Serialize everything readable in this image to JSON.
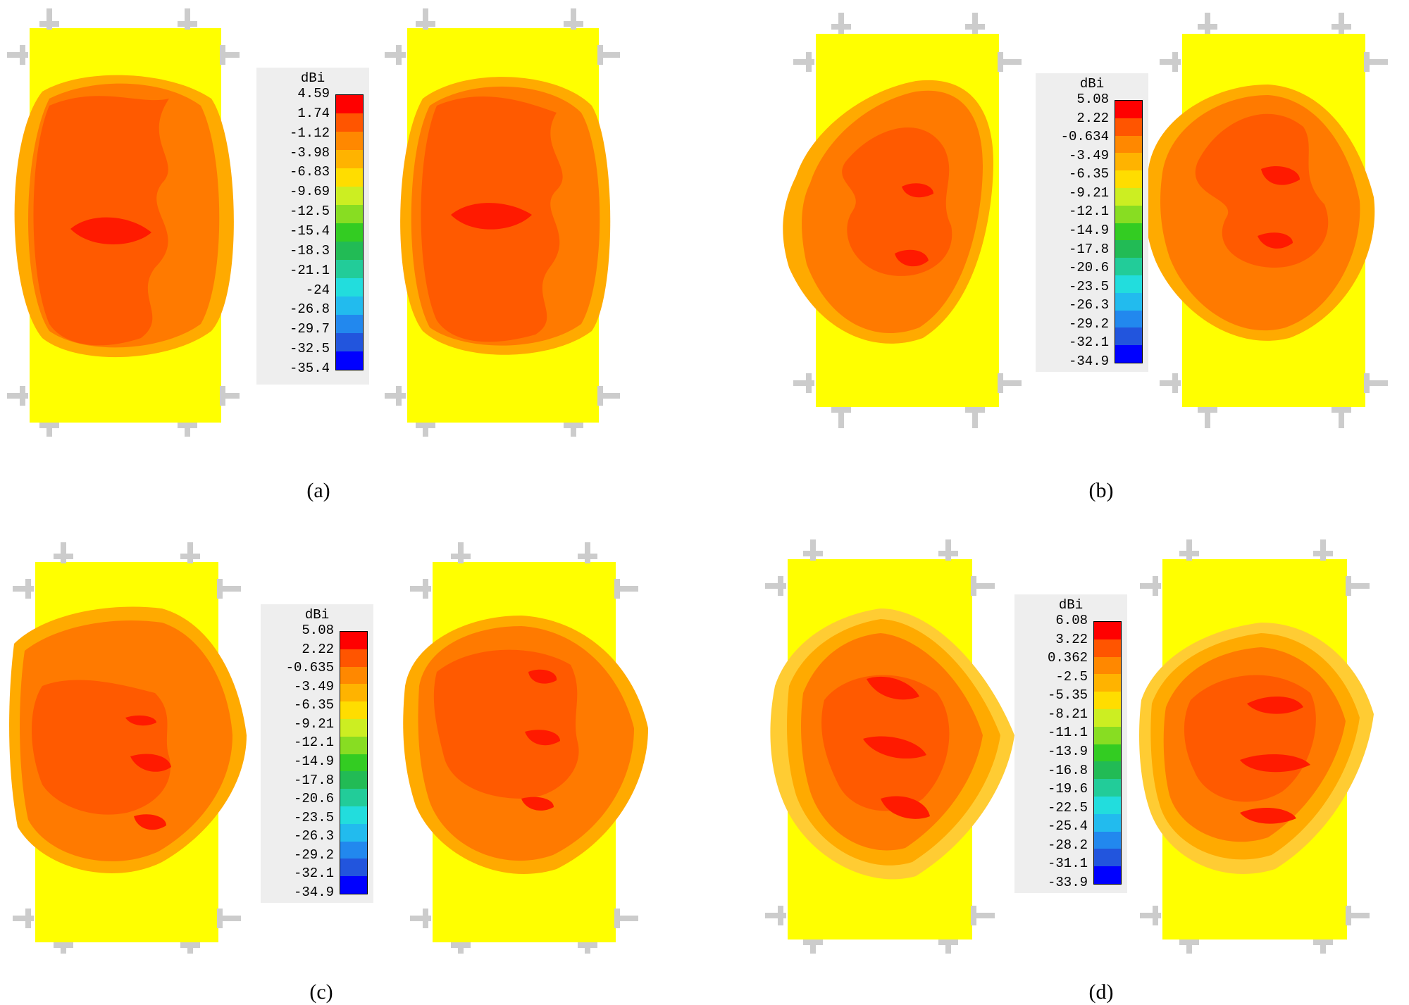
{
  "scale_colors": [
    "#ff0000",
    "#ff5500",
    "#ff8800",
    "#ffb300",
    "#ffdd00",
    "#ccee22",
    "#88dd22",
    "#33cc22",
    "#22bb55",
    "#22cc99",
    "#22dddd",
    "#22bbee",
    "#2288ee",
    "#2255dd",
    "#0000ff"
  ],
  "panels": [
    {
      "id": "a",
      "caption": "(a)",
      "legend": {
        "unit": "dBi",
        "ticks": [
          "4.59",
          "1.74",
          "-1.12",
          "-3.98",
          "-6.83",
          "-9.69",
          "-12.5",
          "-15.4",
          "-18.3",
          "-21.1",
          "-24",
          "-26.8",
          "-29.7",
          "-32.5",
          "-35.4"
        ]
      }
    },
    {
      "id": "b",
      "caption": "(b)",
      "legend": {
        "unit": "dBi",
        "ticks": [
          "5.08",
          "2.22",
          "-0.634",
          "-3.49",
          "-6.35",
          "-9.21",
          "-12.1",
          "-14.9",
          "-17.8",
          "-20.6",
          "-23.5",
          "-26.3",
          "-29.2",
          "-32.1",
          "-34.9"
        ]
      }
    },
    {
      "id": "c",
      "caption": "(c)",
      "legend": {
        "unit": "dBi",
        "ticks": [
          "5.08",
          "2.22",
          "-0.635",
          "-3.49",
          "-6.35",
          "-9.21",
          "-12.1",
          "-14.9",
          "-17.8",
          "-20.6",
          "-23.5",
          "-26.3",
          "-29.2",
          "-32.1",
          "-34.9"
        ]
      }
    },
    {
      "id": "d",
      "caption": "(d)",
      "legend": {
        "unit": "dBi",
        "ticks": [
          "6.08",
          "3.22",
          "0.362",
          "-2.5",
          "-5.35",
          "-8.21",
          "-11.1",
          "-13.9",
          "-16.8",
          "-19.6",
          "-22.5",
          "-25.4",
          "-28.2",
          "-31.1",
          "-33.9"
        ]
      }
    }
  ]
}
